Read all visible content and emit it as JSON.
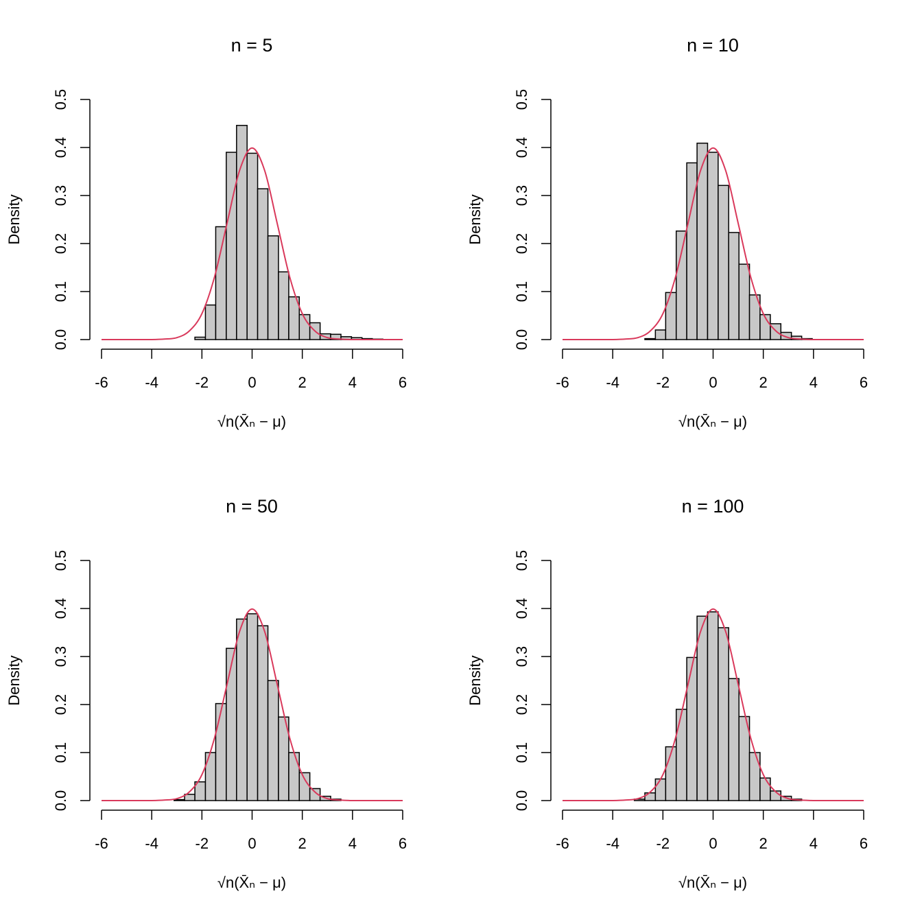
{
  "chart_data": [
    {
      "type": "histogram",
      "title": "n = 5",
      "xlabel": "√n(X̄ₙ − μ)",
      "ylabel": "Density",
      "bins": [
        -2.28,
        -1.86,
        -1.45,
        -1.03,
        -0.62,
        -0.2,
        0.22,
        0.63,
        1.05,
        1.46,
        1.88,
        2.3,
        2.71,
        3.13,
        3.54,
        3.96,
        4.38,
        4.79,
        5.21
      ],
      "values": [
        0.005,
        0.072,
        0.235,
        0.39,
        0.446,
        0.388,
        0.314,
        0.216,
        0.141,
        0.089,
        0.052,
        0.035,
        0.012,
        0.011,
        0.006,
        0.004,
        0.002,
        0.001
      ],
      "color": "#c8c8c8",
      "curve": {
        "color": "#d9395b",
        "x": [
          -6,
          -5.5,
          -5,
          -4.5,
          -4,
          -3.5,
          -3,
          -2.5,
          -2,
          -1.5,
          -1,
          -0.5,
          0,
          0.5,
          1,
          1.5,
          2,
          2.5,
          3,
          3.5,
          4,
          4.5,
          5,
          5.5,
          6
        ],
        "values": [
          0,
          0,
          0,
          0,
          0,
          0.001,
          0.004,
          0.018,
          0.054,
          0.13,
          0.242,
          0.352,
          0.399,
          0.352,
          0.242,
          0.13,
          0.054,
          0.018,
          0.004,
          0.001,
          0,
          0,
          0,
          0,
          0
        ]
      },
      "xlim": [
        -6,
        6
      ],
      "xticks": [
        -6,
        -4,
        -2,
        0,
        2,
        4,
        6
      ],
      "ylim": [
        0,
        0.5
      ],
      "yticks": [
        {
          "value": 0,
          "label": "0.0"
        },
        0.1,
        0.2,
        0.3,
        0.4,
        0.5
      ]
    },
    {
      "type": "histogram",
      "title": "n = 10",
      "xlabel": "√n(X̄ₙ − μ)",
      "ylabel": "Density",
      "bins": [
        -2.72,
        -2.3,
        -1.89,
        -1.47,
        -1.05,
        -0.64,
        -0.22,
        0.2,
        0.62,
        1.03,
        1.45,
        1.87,
        2.28,
        2.7,
        3.12,
        3.53,
        3.95
      ],
      "values": [
        0.002,
        0.02,
        0.098,
        0.226,
        0.368,
        0.409,
        0.39,
        0.321,
        0.223,
        0.157,
        0.093,
        0.052,
        0.033,
        0.015,
        0.007,
        0.002
      ],
      "color": "#c8c8c8",
      "curve": {
        "color": "#d9395b",
        "x": [
          -6,
          -5.5,
          -5,
          -4.5,
          -4,
          -3.5,
          -3,
          -2.5,
          -2,
          -1.5,
          -1,
          -0.5,
          0,
          0.5,
          1,
          1.5,
          2,
          2.5,
          3,
          3.5,
          4,
          4.5,
          5,
          5.5,
          6
        ],
        "values": [
          0,
          0,
          0,
          0,
          0,
          0.001,
          0.004,
          0.018,
          0.054,
          0.13,
          0.242,
          0.352,
          0.399,
          0.352,
          0.242,
          0.13,
          0.054,
          0.018,
          0.004,
          0.001,
          0,
          0,
          0,
          0,
          0
        ]
      },
      "xlim": [
        -6,
        6
      ],
      "xticks": [
        -6,
        -4,
        -2,
        0,
        2,
        4,
        6
      ],
      "ylim": [
        0,
        0.5
      ],
      "yticks": [
        {
          "value": 0,
          "label": "0.0"
        },
        0.1,
        0.2,
        0.3,
        0.4,
        0.5
      ]
    },
    {
      "type": "histogram",
      "title": "n = 50",
      "xlabel": "√n(X̄ₙ − μ)",
      "ylabel": "Density",
      "bins": [
        -3.11,
        -2.69,
        -2.28,
        -1.86,
        -1.45,
        -1.03,
        -0.62,
        -0.2,
        0.22,
        0.63,
        1.05,
        1.46,
        1.88,
        2.3,
        2.71,
        3.13,
        3.54
      ],
      "values": [
        0.002,
        0.013,
        0.039,
        0.1,
        0.202,
        0.317,
        0.378,
        0.389,
        0.364,
        0.25,
        0.174,
        0.1,
        0.058,
        0.025,
        0.009,
        0.003
      ],
      "color": "#c8c8c8",
      "curve": {
        "color": "#d9395b",
        "x": [
          -6,
          -5.5,
          -5,
          -4.5,
          -4,
          -3.5,
          -3,
          -2.5,
          -2,
          -1.5,
          -1,
          -0.5,
          0,
          0.5,
          1,
          1.5,
          2,
          2.5,
          3,
          3.5,
          4,
          4.5,
          5,
          5.5,
          6
        ],
        "values": [
          0,
          0,
          0,
          0,
          0,
          0.001,
          0.004,
          0.018,
          0.054,
          0.13,
          0.242,
          0.352,
          0.399,
          0.352,
          0.242,
          0.13,
          0.054,
          0.018,
          0.004,
          0.001,
          0,
          0,
          0,
          0,
          0
        ]
      },
      "xlim": [
        -6,
        6
      ],
      "xticks": [
        -6,
        -4,
        -2,
        0,
        2,
        4,
        6
      ],
      "ylim": [
        0,
        0.5
      ],
      "yticks": [
        {
          "value": 0,
          "label": "0.0"
        },
        0.1,
        0.2,
        0.3,
        0.4,
        0.5
      ]
    },
    {
      "type": "histogram",
      "title": "n = 100",
      "xlabel": "√n(X̄ₙ − μ)",
      "ylabel": "Density",
      "bins": [
        -3.14,
        -2.72,
        -2.3,
        -1.89,
        -1.47,
        -1.05,
        -0.64,
        -0.22,
        0.2,
        0.62,
        1.03,
        1.45,
        1.87,
        2.28,
        2.7,
        3.12,
        3.53
      ],
      "values": [
        0.003,
        0.016,
        0.045,
        0.112,
        0.19,
        0.298,
        0.384,
        0.393,
        0.36,
        0.254,
        0.175,
        0.1,
        0.047,
        0.02,
        0.009,
        0.003
      ],
      "color": "#c8c8c8",
      "curve": {
        "color": "#d9395b",
        "x": [
          -6,
          -5.5,
          -5,
          -4.5,
          -4,
          -3.5,
          -3,
          -2.5,
          -2,
          -1.5,
          -1,
          -0.5,
          0,
          0.5,
          1,
          1.5,
          2,
          2.5,
          3,
          3.5,
          4,
          4.5,
          5,
          5.5,
          6
        ],
        "values": [
          0,
          0,
          0,
          0,
          0,
          0.001,
          0.004,
          0.018,
          0.054,
          0.13,
          0.242,
          0.352,
          0.399,
          0.352,
          0.242,
          0.13,
          0.054,
          0.018,
          0.004,
          0.001,
          0,
          0,
          0,
          0,
          0
        ]
      },
      "xlim": [
        -6,
        6
      ],
      "xticks": [
        -6,
        -4,
        -2,
        0,
        2,
        4,
        6
      ],
      "ylim": [
        0,
        0.5
      ],
      "yticks": [
        {
          "value": 0,
          "label": "0.0"
        },
        0.1,
        0.2,
        0.3,
        0.4,
        0.5
      ]
    }
  ]
}
